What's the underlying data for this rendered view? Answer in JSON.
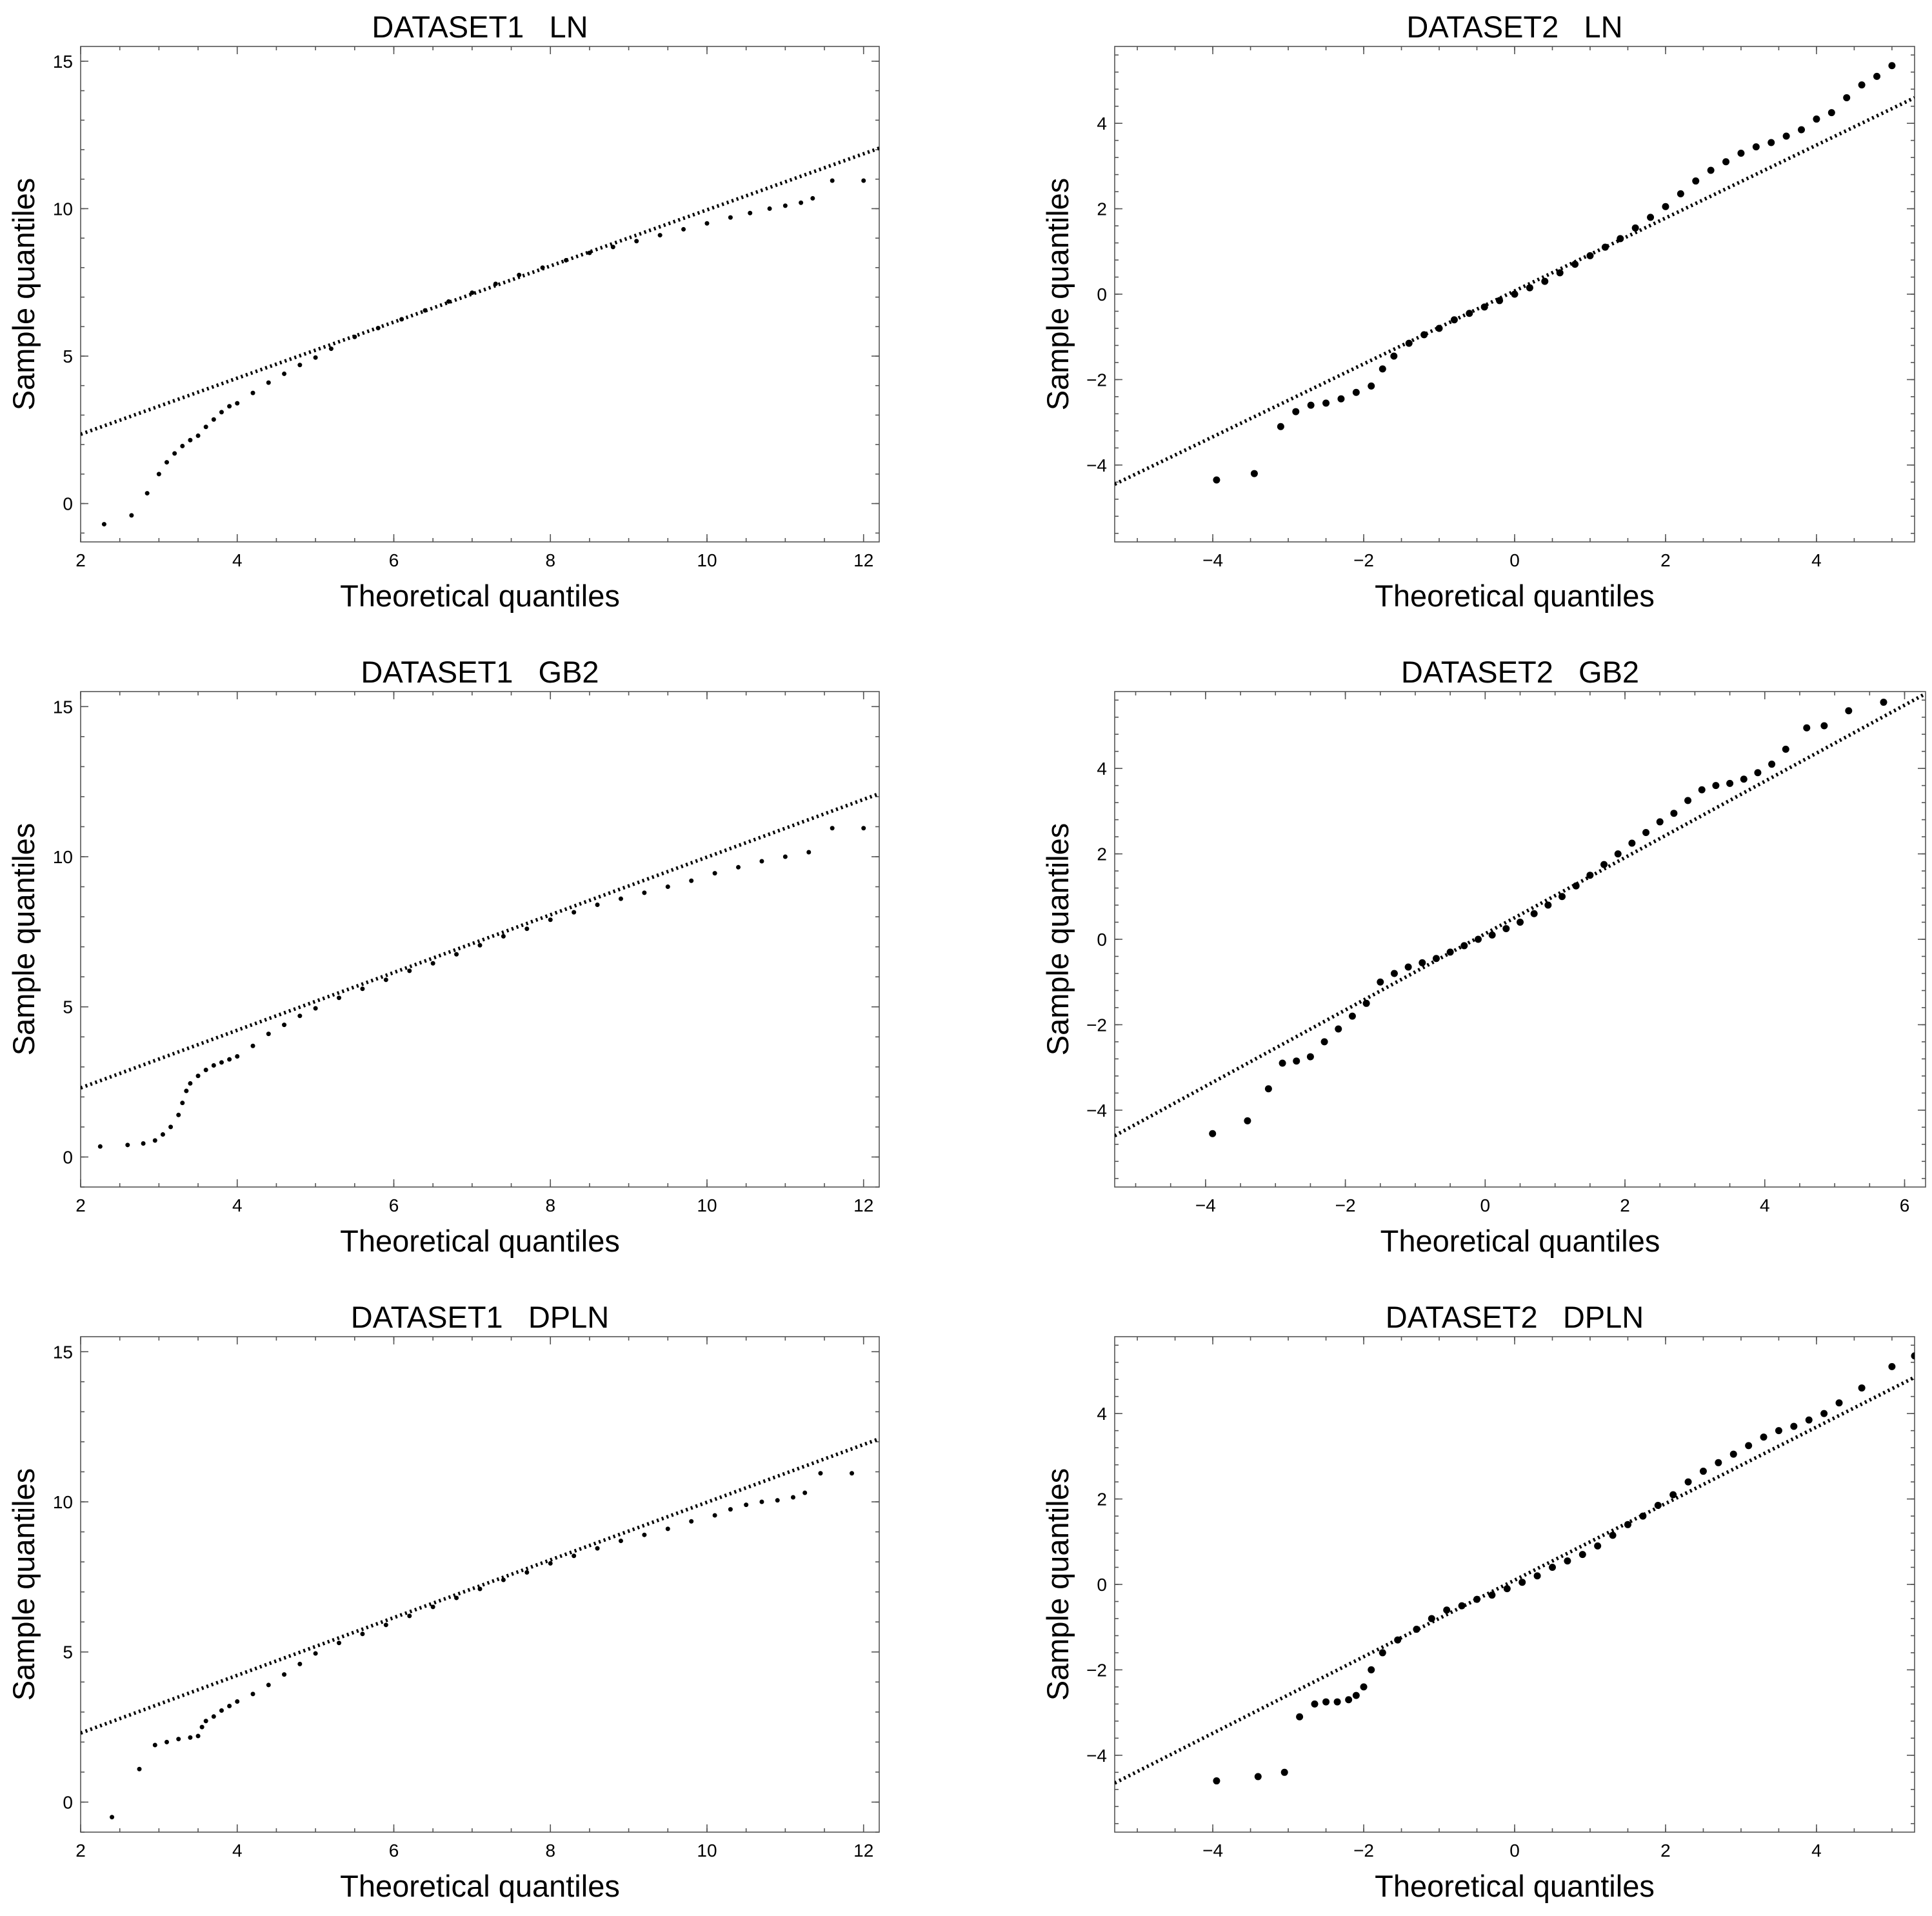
{
  "chart_data": [
    {
      "type": "scatter",
      "title": "DATASET1   LN",
      "xlabel": "Theoretical quantiles",
      "ylabel": "Sample quantiles",
      "xlim": [
        2,
        12.2
      ],
      "ylim": [
        -1.3,
        15.5
      ],
      "xticks": [
        2,
        4,
        6,
        8,
        10,
        12
      ],
      "yticks": [
        0,
        5,
        10,
        15
      ],
      "grid": false,
      "reference_line": {
        "x": [
          2,
          12.2
        ],
        "y": [
          2.35,
          12.05
        ]
      },
      "points": {
        "x": [
          2.3,
          2.65,
          2.85,
          3.0,
          3.1,
          3.2,
          3.3,
          3.4,
          3.5,
          3.6,
          3.7,
          3.8,
          3.9,
          4.0,
          4.2,
          4.4,
          4.6,
          4.8,
          5.0,
          5.2,
          5.5,
          5.8,
          6.1,
          6.4,
          6.7,
          7.0,
          7.3,
          7.6,
          7.9,
          8.2,
          8.5,
          8.8,
          9.1,
          9.4,
          9.7,
          10.0,
          10.3,
          10.55,
          10.8,
          11.0,
          11.2,
          11.35,
          11.6,
          12.0
        ],
        "y": [
          -0.7,
          -0.4,
          0.35,
          1.0,
          1.4,
          1.7,
          1.95,
          2.15,
          2.3,
          2.6,
          2.85,
          3.1,
          3.3,
          3.4,
          3.75,
          4.1,
          4.4,
          4.7,
          4.95,
          5.25,
          5.65,
          5.95,
          6.25,
          6.55,
          6.85,
          7.15,
          7.45,
          7.75,
          8.0,
          8.25,
          8.5,
          8.7,
          8.9,
          9.1,
          9.3,
          9.5,
          9.7,
          9.85,
          10.0,
          10.1,
          10.2,
          10.35,
          10.95,
          10.95
        ]
      }
    },
    {
      "type": "scatter",
      "title": "DATASET2   LN",
      "xlabel": "Theoretical quantiles",
      "ylabel": "Sample quantiles",
      "xlim": [
        -5.3,
        5.3
      ],
      "ylim": [
        -5.8,
        5.8
      ],
      "xticks": [
        -4,
        -2,
        0,
        2,
        4
      ],
      "yticks": [
        -4,
        -2,
        0,
        2,
        4
      ],
      "grid": false,
      "reference_line": {
        "x": [
          -5.3,
          5.3
        ],
        "y": [
          -4.45,
          4.6
        ]
      },
      "points": {
        "x": [
          -3.95,
          -3.45,
          -3.1,
          -2.9,
          -2.7,
          -2.5,
          -2.3,
          -2.1,
          -1.9,
          -1.75,
          -1.6,
          -1.4,
          -1.2,
          -1.0,
          -0.8,
          -0.6,
          -0.4,
          -0.2,
          0.0,
          0.2,
          0.4,
          0.6,
          0.8,
          1.0,
          1.2,
          1.4,
          1.6,
          1.8,
          2.0,
          2.2,
          2.4,
          2.6,
          2.8,
          3.0,
          3.2,
          3.4,
          3.6,
          3.8,
          4.0,
          4.2,
          4.4,
          4.6,
          4.8,
          5.0
        ],
        "y": [
          -4.35,
          -4.2,
          -3.1,
          -2.75,
          -2.6,
          -2.55,
          -2.45,
          -2.3,
          -2.15,
          -1.75,
          -1.45,
          -1.15,
          -0.95,
          -0.8,
          -0.6,
          -0.45,
          -0.3,
          -0.15,
          0.0,
          0.15,
          0.3,
          0.5,
          0.7,
          0.9,
          1.1,
          1.3,
          1.55,
          1.8,
          2.05,
          2.35,
          2.65,
          2.9,
          3.1,
          3.3,
          3.45,
          3.55,
          3.7,
          3.85,
          4.1,
          4.25,
          4.6,
          4.9,
          5.1,
          5.35
        ]
      }
    },
    {
      "type": "scatter",
      "title": "DATASET1   GB2",
      "xlabel": "Theoretical quantiles",
      "ylabel": "Sample quantiles",
      "xlim": [
        2,
        12.2
      ],
      "ylim": [
        -1.0,
        15.5
      ],
      "xticks": [
        2,
        4,
        6,
        8,
        10,
        12
      ],
      "yticks": [
        0,
        5,
        10,
        15
      ],
      "grid": false,
      "reference_line": {
        "x": [
          2,
          12.2
        ],
        "y": [
          2.3,
          12.1
        ]
      },
      "points": {
        "x": [
          2.25,
          2.6,
          2.8,
          2.95,
          3.05,
          3.15,
          3.25,
          3.3,
          3.35,
          3.4,
          3.5,
          3.6,
          3.7,
          3.8,
          3.9,
          4.0,
          4.2,
          4.4,
          4.6,
          4.8,
          5.0,
          5.3,
          5.6,
          5.9,
          6.2,
          6.5,
          6.8,
          7.1,
          7.4,
          7.7,
          8.0,
          8.3,
          8.6,
          8.9,
          9.2,
          9.5,
          9.8,
          10.1,
          10.4,
          10.7,
          11.0,
          11.3,
          11.6,
          12.0
        ],
        "y": [
          0.35,
          0.4,
          0.45,
          0.55,
          0.75,
          1.0,
          1.4,
          1.8,
          2.2,
          2.45,
          2.7,
          2.9,
          3.05,
          3.15,
          3.25,
          3.35,
          3.7,
          4.1,
          4.4,
          4.7,
          4.95,
          5.3,
          5.6,
          5.9,
          6.2,
          6.45,
          6.75,
          7.05,
          7.35,
          7.6,
          7.9,
          8.15,
          8.4,
          8.6,
          8.8,
          9.0,
          9.2,
          9.45,
          9.65,
          9.85,
          10.0,
          10.15,
          10.95,
          10.95
        ]
      }
    },
    {
      "type": "scatter",
      "title": "DATASET2   GB2",
      "xlabel": "Theoretical quantiles",
      "ylabel": "Sample quantiles",
      "xlim": [
        -5.3,
        6.3
      ],
      "ylim": [
        -5.8,
        5.8
      ],
      "xticks": [
        -4,
        -2,
        0,
        2,
        4,
        6
      ],
      "yticks": [
        -4,
        -2,
        0,
        2,
        4
      ],
      "grid": false,
      "reference_line": {
        "x": [
          -5.3,
          6.3
        ],
        "y": [
          -4.6,
          5.75
        ]
      },
      "points": {
        "x": [
          -3.9,
          -3.4,
          -3.1,
          -2.9,
          -2.7,
          -2.5,
          -2.3,
          -2.1,
          -1.9,
          -1.7,
          -1.5,
          -1.3,
          -1.1,
          -0.9,
          -0.7,
          -0.5,
          -0.3,
          -0.1,
          0.1,
          0.3,
          0.5,
          0.7,
          0.9,
          1.1,
          1.3,
          1.5,
          1.7,
          1.9,
          2.1,
          2.3,
          2.5,
          2.7,
          2.9,
          3.1,
          3.3,
          3.5,
          3.7,
          3.9,
          4.1,
          4.3,
          4.6,
          4.85,
          5.2,
          5.7
        ],
        "y": [
          -4.55,
          -4.25,
          -3.5,
          -2.9,
          -2.85,
          -2.75,
          -2.4,
          -2.1,
          -1.8,
          -1.5,
          -1.0,
          -0.8,
          -0.65,
          -0.55,
          -0.45,
          -0.3,
          -0.15,
          0.0,
          0.1,
          0.25,
          0.4,
          0.6,
          0.8,
          1.0,
          1.25,
          1.5,
          1.75,
          2.0,
          2.25,
          2.5,
          2.75,
          2.95,
          3.25,
          3.5,
          3.6,
          3.65,
          3.75,
          3.9,
          4.1,
          4.45,
          4.95,
          5.0,
          5.35,
          5.55
        ]
      }
    },
    {
      "type": "scatter",
      "title": "DATASET1   DPLN",
      "xlabel": "Theoretical quantiles",
      "ylabel": "Sample quantiles",
      "xlim": [
        2,
        12.2
      ],
      "ylim": [
        -1.0,
        15.5
      ],
      "xticks": [
        2,
        4,
        6,
        8,
        10,
        12
      ],
      "yticks": [
        0,
        5,
        10,
        15
      ],
      "grid": false,
      "reference_line": {
        "x": [
          2,
          12.2
        ],
        "y": [
          2.3,
          12.1
        ]
      },
      "points": {
        "x": [
          2.4,
          2.75,
          2.95,
          3.1,
          3.25,
          3.4,
          3.5,
          3.55,
          3.6,
          3.7,
          3.8,
          3.9,
          4.0,
          4.2,
          4.4,
          4.6,
          4.8,
          5.0,
          5.3,
          5.6,
          5.9,
          6.2,
          6.5,
          6.8,
          7.1,
          7.4,
          7.7,
          8.0,
          8.3,
          8.6,
          8.9,
          9.2,
          9.5,
          9.8,
          10.1,
          10.3,
          10.5,
          10.7,
          10.9,
          11.1,
          11.25,
          11.45,
          11.85
        ],
        "y": [
          -0.5,
          1.1,
          1.9,
          2.0,
          2.1,
          2.15,
          2.2,
          2.5,
          2.7,
          2.85,
          3.05,
          3.2,
          3.35,
          3.6,
          3.9,
          4.25,
          4.6,
          4.95,
          5.3,
          5.6,
          5.9,
          6.2,
          6.5,
          6.8,
          7.1,
          7.4,
          7.65,
          7.95,
          8.2,
          8.45,
          8.7,
          8.9,
          9.1,
          9.35,
          9.55,
          9.75,
          9.9,
          10.0,
          10.05,
          10.15,
          10.3,
          10.95,
          10.95
        ]
      }
    },
    {
      "type": "scatter",
      "title": "DATASET2   DPLN",
      "xlabel": "Theoretical quantiles",
      "ylabel": "Sample quantiles",
      "xlim": [
        -5.3,
        5.3
      ],
      "ylim": [
        -5.8,
        5.8
      ],
      "xticks": [
        -4,
        -2,
        0,
        2,
        4
      ],
      "yticks": [
        -4,
        -2,
        0,
        2,
        4
      ],
      "grid": false,
      "reference_line": {
        "x": [
          -5.3,
          5.3
        ],
        "y": [
          -4.65,
          4.85
        ]
      },
      "points": {
        "x": [
          -3.95,
          -3.4,
          -3.05,
          -2.85,
          -2.65,
          -2.5,
          -2.35,
          -2.2,
          -2.1,
          -2.0,
          -1.9,
          -1.75,
          -1.55,
          -1.3,
          -1.1,
          -0.9,
          -0.7,
          -0.5,
          -0.3,
          -0.1,
          0.1,
          0.3,
          0.5,
          0.7,
          0.9,
          1.1,
          1.3,
          1.5,
          1.7,
          1.9,
          2.1,
          2.3,
          2.5,
          2.7,
          2.9,
          3.1,
          3.3,
          3.5,
          3.7,
          3.9,
          4.1,
          4.3,
          4.6,
          5.0,
          5.3
        ],
        "y": [
          -4.6,
          -4.5,
          -4.4,
          -3.1,
          -2.8,
          -2.75,
          -2.75,
          -2.7,
          -2.6,
          -2.4,
          -2.0,
          -1.6,
          -1.3,
          -1.05,
          -0.8,
          -0.6,
          -0.5,
          -0.35,
          -0.25,
          -0.1,
          0.05,
          0.2,
          0.4,
          0.55,
          0.7,
          0.9,
          1.15,
          1.4,
          1.6,
          1.85,
          2.1,
          2.4,
          2.65,
          2.85,
          3.05,
          3.25,
          3.45,
          3.6,
          3.7,
          3.85,
          4.0,
          4.25,
          4.6,
          5.1,
          5.35
        ]
      }
    }
  ]
}
